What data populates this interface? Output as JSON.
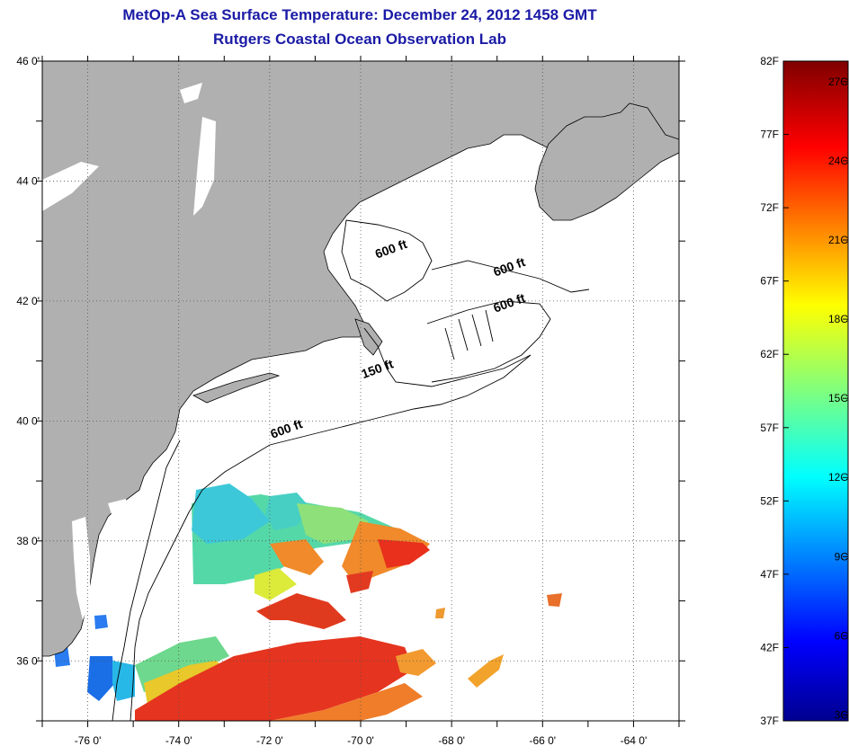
{
  "title": {
    "line1": "MetOp-A Sea Surface Temperature:  December 24, 2012 1458 GMT",
    "line2": "Rutgers Coastal Ocean Observation Lab"
  },
  "map": {
    "lon_range": [
      -77,
      -63
    ],
    "lat_range": [
      35,
      46
    ],
    "lon_ticks": [
      {
        "value": -76,
        "label": "-76 0'"
      },
      {
        "value": -74,
        "label": "-74 0'"
      },
      {
        "value": -72,
        "label": "-72 0'"
      },
      {
        "value": -70,
        "label": "-70 0'"
      },
      {
        "value": -68,
        "label": "-68 0'"
      },
      {
        "value": -66,
        "label": "-66 0'"
      },
      {
        "value": -64,
        "label": "-64 0'"
      }
    ],
    "lat_ticks": [
      {
        "value": 46,
        "label": "46 0'"
      },
      {
        "value": 44,
        "label": "44 0'"
      },
      {
        "value": 42,
        "label": "42 0'"
      },
      {
        "value": 40,
        "label": "40 0'"
      },
      {
        "value": 38,
        "label": "38 0'"
      },
      {
        "value": 36,
        "label": "36 0'"
      }
    ],
    "grid": true,
    "contour_labels": [
      {
        "text": "600 ft",
        "lon": -69.3,
        "lat": 42.8
      },
      {
        "text": "600 ft",
        "lon": -66.7,
        "lat": 42.5
      },
      {
        "text": "600 ft",
        "lon": -66.7,
        "lat": 41.9
      },
      {
        "text": "150 ft",
        "lon": -69.6,
        "lat": 40.8
      },
      {
        "text": "600 ft",
        "lon": -71.6,
        "lat": 39.8
      }
    ]
  },
  "colorbar": {
    "f_ticks": [
      {
        "value": 82,
        "label": "82F"
      },
      {
        "value": 77,
        "label": "77F"
      },
      {
        "value": 72,
        "label": "72F"
      },
      {
        "value": 67,
        "label": "67F"
      },
      {
        "value": 62,
        "label": "62F"
      },
      {
        "value": 57,
        "label": "57F"
      },
      {
        "value": 52,
        "label": "52F"
      },
      {
        "value": 47,
        "label": "47F"
      },
      {
        "value": 42,
        "label": "42F"
      },
      {
        "value": 37,
        "label": "37F"
      }
    ],
    "c_ticks": [
      {
        "value": 27,
        "label": "27C"
      },
      {
        "value": 24,
        "label": "24C"
      },
      {
        "value": 21,
        "label": "21C"
      },
      {
        "value": 18,
        "label": "18C"
      },
      {
        "value": 15,
        "label": "15C"
      },
      {
        "value": 12,
        "label": "12C"
      },
      {
        "value": 9,
        "label": "9C"
      },
      {
        "value": 6,
        "label": "6C"
      },
      {
        "value": 3,
        "label": "3C"
      }
    ],
    "range_f": [
      37,
      82
    ]
  },
  "colors": {
    "land": "#b0b0b0",
    "water": "#ffffff",
    "title": "#1a1aa6"
  }
}
